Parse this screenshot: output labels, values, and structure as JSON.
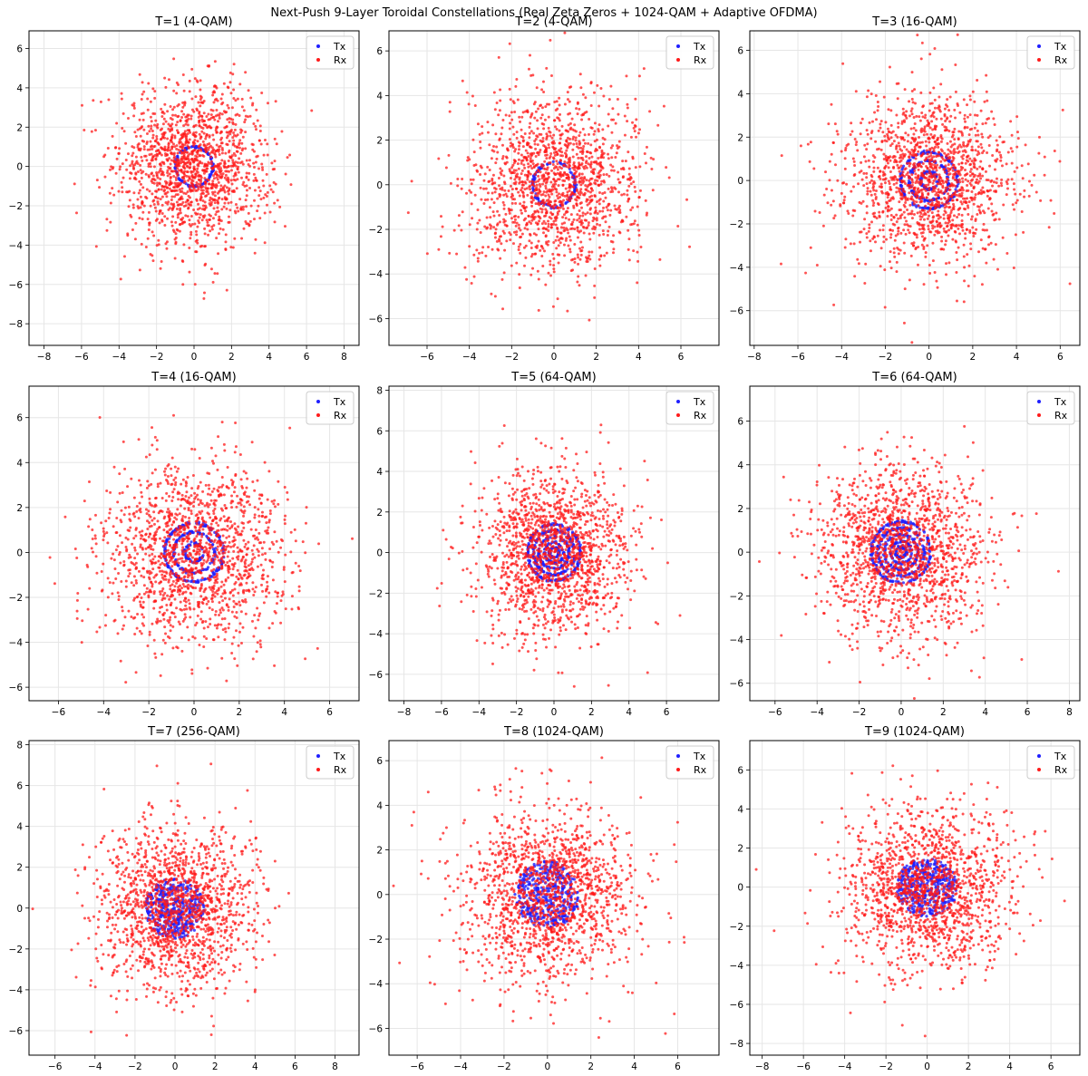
{
  "figure_title": "Next-Push 9-Layer Toroidal Constellations (Real Zeta Zeros + 1024-QAM + Adaptive OFDMA)",
  "colors": {
    "tx": "#1f1fff",
    "rx": "#ff1a1a",
    "grid": "#e6e6e6",
    "axes": "#000000"
  },
  "chart_data": [
    {
      "type": "scatter",
      "title": "T=1 (4-QAM)",
      "xlim": [
        -8.8,
        8.8
      ],
      "ylim": [
        -9.1,
        6.9
      ],
      "xticks": [
        "-8",
        "-6",
        "-4",
        "-2",
        "0",
        "2",
        "4",
        "6",
        "8"
      ],
      "yticks": [
        "-8",
        "-6",
        "-4",
        "-2",
        "0",
        "2",
        "4",
        "6"
      ],
      "tx_rings": [
        1.0
      ],
      "tx_fill_radius": 0,
      "rx_sigma": 2.0,
      "rx_count": 1500,
      "legend": [
        "Tx",
        "Rx"
      ],
      "grid": true,
      "legend_position": "upper right"
    },
    {
      "type": "scatter",
      "title": "T=2 (4-QAM)",
      "xlim": [
        -7.8,
        7.8
      ],
      "ylim": [
        -7.2,
        6.9
      ],
      "xticks": [
        "-6",
        "-4",
        "-2",
        "0",
        "2",
        "4",
        "6"
      ],
      "yticks": [
        "-6",
        "-4",
        "-2",
        "0",
        "2",
        "4",
        "6"
      ],
      "tx_rings": [
        1.0
      ],
      "tx_fill_radius": 0,
      "rx_sigma": 2.0,
      "rx_count": 1500,
      "legend": [
        "Tx",
        "Rx"
      ],
      "grid": true,
      "legend_position": "upper right"
    },
    {
      "type": "scatter",
      "title": "T=3 (16-QAM)",
      "xlim": [
        -8.2,
        6.9
      ],
      "ylim": [
        -7.6,
        6.9
      ],
      "xticks": [
        "-8",
        "-6",
        "-4",
        "-2",
        "0",
        "2",
        "4",
        "6"
      ],
      "yticks": [
        "-6",
        "-4",
        "-2",
        "0",
        "2",
        "4",
        "6"
      ],
      "tx_rings": [
        1.3,
        0.9,
        0.4
      ],
      "tx_fill_radius": 0,
      "rx_sigma": 2.0,
      "rx_count": 1500,
      "legend": [
        "Tx",
        "Rx"
      ],
      "grid": true,
      "legend_position": "upper right"
    },
    {
      "type": "scatter",
      "title": "T=4 (16-QAM)",
      "xlim": [
        -7.3,
        7.3
      ],
      "ylim": [
        -6.6,
        7.4
      ],
      "xticks": [
        "-6",
        "-4",
        "-2",
        "0",
        "2",
        "4",
        "6"
      ],
      "yticks": [
        "-6",
        "-4",
        "-2",
        "0",
        "2",
        "4",
        "6"
      ],
      "tx_rings": [
        1.3,
        0.9,
        0.4
      ],
      "tx_fill_radius": 0,
      "rx_sigma": 2.0,
      "rx_count": 1500,
      "legend": [
        "Tx",
        "Rx"
      ],
      "grid": true,
      "legend_position": "upper right"
    },
    {
      "type": "scatter",
      "title": "T=5 (64-QAM)",
      "xlim": [
        -8.8,
        8.8
      ],
      "ylim": [
        -7.3,
        8.2
      ],
      "xticks": [
        "-8",
        "-6",
        "-4",
        "-2",
        "0",
        "2",
        "4",
        "6"
      ],
      "yticks": [
        "-6",
        "-4",
        "-2",
        "0",
        "2",
        "4",
        "6",
        "8"
      ],
      "tx_rings": [
        1.4,
        1.1,
        0.8,
        0.5,
        0.25
      ],
      "tx_fill_radius": 0,
      "rx_sigma": 2.0,
      "rx_count": 1500,
      "legend": [
        "Tx",
        "Rx"
      ],
      "grid": true,
      "legend_position": "upper right"
    },
    {
      "type": "scatter",
      "title": "T=6 (64-QAM)",
      "xlim": [
        -7.2,
        8.5
      ],
      "ylim": [
        -6.8,
        7.6
      ],
      "xticks": [
        "-6",
        "-4",
        "-2",
        "0",
        "2",
        "4",
        "6",
        "8"
      ],
      "yticks": [
        "-6",
        "-4",
        "-2",
        "0",
        "2",
        "4",
        "6"
      ],
      "tx_rings": [
        1.4,
        1.1,
        0.8,
        0.5,
        0.25
      ],
      "tx_fill_radius": 0,
      "rx_sigma": 2.0,
      "rx_count": 1500,
      "legend": [
        "Tx",
        "Rx"
      ],
      "grid": true,
      "legend_position": "upper right"
    },
    {
      "type": "scatter",
      "title": "T=7 (256-QAM)",
      "xlim": [
        -7.3,
        9.2
      ],
      "ylim": [
        -7.2,
        8.2
      ],
      "xticks": [
        "-6",
        "-4",
        "-2",
        "0",
        "2",
        "4",
        "6",
        "8"
      ],
      "yticks": [
        "-6",
        "-4",
        "-2",
        "0",
        "2",
        "4",
        "6",
        "8"
      ],
      "tx_rings": [],
      "tx_fill_radius": 1.5,
      "rx_sigma": 2.0,
      "rx_count": 1500,
      "legend": [
        "Tx",
        "Rx"
      ],
      "grid": true,
      "legend_position": "upper right"
    },
    {
      "type": "scatter",
      "title": "T=8 (1024-QAM)",
      "xlim": [
        -7.3,
        7.9
      ],
      "ylim": [
        -7.2,
        6.9
      ],
      "xticks": [
        "-6",
        "-4",
        "-2",
        "0",
        "2",
        "4",
        "6"
      ],
      "yticks": [
        "-6",
        "-4",
        "-2",
        "0",
        "2",
        "4",
        "6"
      ],
      "tx_rings": [],
      "tx_fill_radius": 1.5,
      "rx_sigma": 2.0,
      "rx_count": 1500,
      "legend": [
        "Tx",
        "Rx"
      ],
      "grid": true,
      "legend_position": "upper right"
    },
    {
      "type": "scatter",
      "title": "T=9 (1024-QAM)",
      "xlim": [
        -8.6,
        7.4
      ],
      "ylim": [
        -8.6,
        7.5
      ],
      "xticks": [
        "-8",
        "-6",
        "-4",
        "-2",
        "0",
        "2",
        "4",
        "6"
      ],
      "yticks": [
        "-8",
        "-6",
        "-4",
        "-2",
        "0",
        "2",
        "4",
        "6"
      ],
      "tx_rings": [],
      "tx_fill_radius": 1.5,
      "rx_sigma": 2.0,
      "rx_count": 1500,
      "legend": [
        "Tx",
        "Rx"
      ],
      "grid": true,
      "legend_position": "upper right"
    }
  ]
}
